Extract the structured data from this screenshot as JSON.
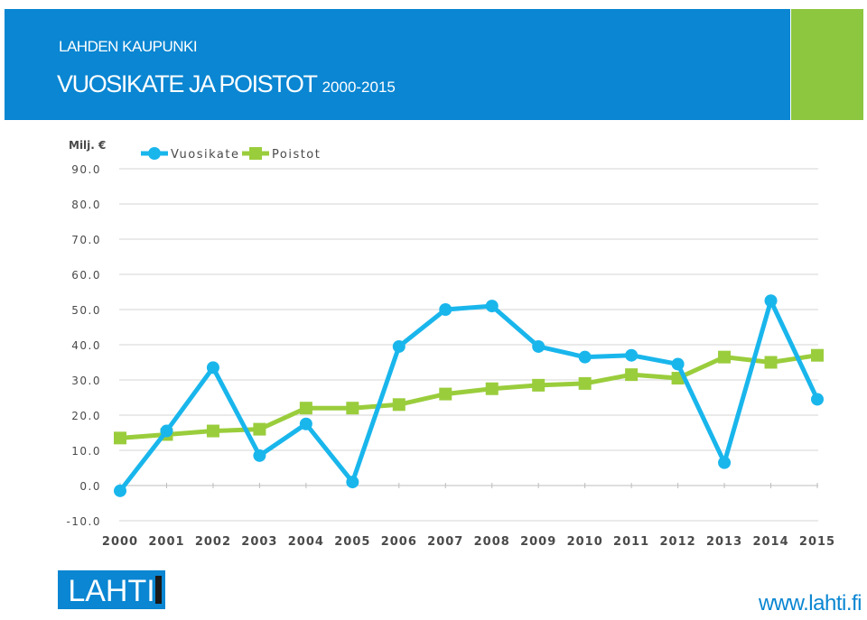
{
  "header": {
    "org_name": "LAHDEN KAUPUNKI",
    "title": "VUOSIKATE JA POISTOT",
    "years": "2000-2015"
  },
  "footer": {
    "logo_text": "LAHTI",
    "website": "www.lahti.fi"
  },
  "colors": {
    "header_blue": "#0a86d2",
    "accent_green": "#8dc63f",
    "series_vuosikate": "#19b6ec",
    "series_poistot": "#9acd3c"
  },
  "chart_data": {
    "type": "line",
    "ylabel": "Milj. €",
    "ylim": [
      -10,
      90
    ],
    "yticks": [
      "90.0",
      "80.0",
      "70.0",
      "60.0",
      "50.0",
      "40.0",
      "30.0",
      "20.0",
      "10.0",
      "0.0",
      "-10.0"
    ],
    "grid": true,
    "legend": "top-left",
    "categories": [
      "2000",
      "2001",
      "2002",
      "2003",
      "2004",
      "2005",
      "2006",
      "2007",
      "2008",
      "2009",
      "2010",
      "2011",
      "2012",
      "2013",
      "2014",
      "2015"
    ],
    "series": [
      {
        "name": "Vuosikate",
        "marker": "circle",
        "values": [
          -1.5,
          15.5,
          33.5,
          8.5,
          17.5,
          1.0,
          39.5,
          50.0,
          51.0,
          39.5,
          36.5,
          37.0,
          34.5,
          6.5,
          52.5,
          24.5
        ]
      },
      {
        "name": "Poistot",
        "marker": "square",
        "values": [
          13.5,
          14.5,
          15.5,
          16.0,
          22.0,
          22.0,
          23.0,
          26.0,
          27.5,
          28.5,
          29.0,
          31.5,
          30.5,
          36.5,
          35.0,
          37.0
        ]
      }
    ]
  }
}
